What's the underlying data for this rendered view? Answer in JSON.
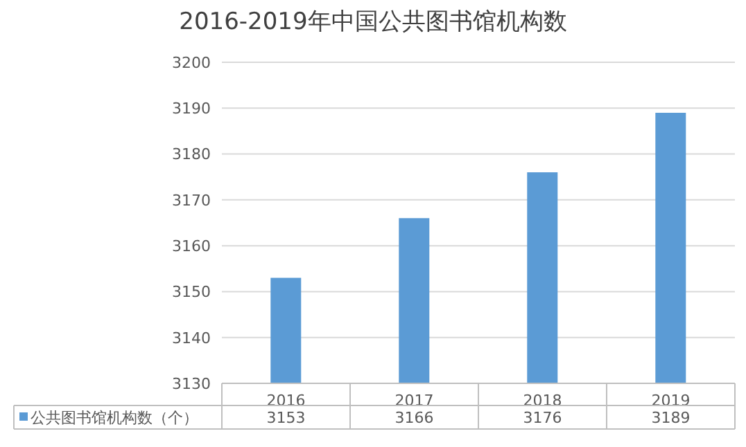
{
  "chart_data": {
    "type": "bar",
    "title": "2016-2019年中国公共图书馆机构数",
    "categories": [
      "2016",
      "2017",
      "2018",
      "2019"
    ],
    "series": [
      {
        "name": "公共图书馆机构数（个）",
        "color": "#5b9bd5",
        "values": [
          3153,
          3166,
          3176,
          3189
        ]
      }
    ],
    "ylim": [
      3130,
      3200
    ],
    "yticks": [
      3130,
      3140,
      3150,
      3160,
      3170,
      3180,
      3190,
      3200
    ],
    "grid": "y",
    "legend": "bottom",
    "data_labels": true
  }
}
